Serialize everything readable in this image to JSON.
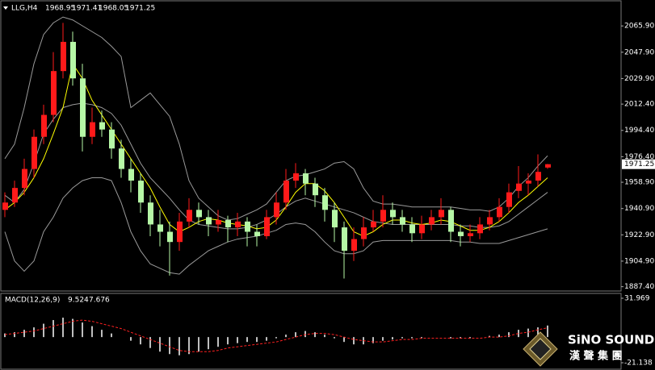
{
  "chart_data": [
    {
      "type": "candlestick",
      "title": "LLG,H4",
      "up_color": "#ff1a1a",
      "down_color": "#b6f7a6",
      "candles": [
        [
          1940,
          1952,
          1935,
          1945
        ],
        [
          1945,
          1960,
          1942,
          1955
        ],
        [
          1955,
          1975,
          1950,
          1968
        ],
        [
          1968,
          1995,
          1962,
          1990
        ],
        [
          1990,
          2012,
          1985,
          2005
        ],
        [
          2005,
          2048,
          2000,
          2035
        ],
        [
          2035,
          2068,
          2030,
          2055
        ],
        [
          2055,
          2062,
          2025,
          2030
        ],
        [
          2030,
          2040,
          1980,
          1990
        ],
        [
          1990,
          2010,
          1985,
          2000
        ],
        [
          2000,
          2008,
          1990,
          1995
        ],
        [
          1995,
          2000,
          1975,
          1982
        ],
        [
          1982,
          1988,
          1962,
          1968
        ],
        [
          1968,
          1975,
          1952,
          1960
        ],
        [
          1960,
          1965,
          1938,
          1945
        ],
        [
          1945,
          1950,
          1922,
          1930
        ],
        [
          1930,
          1940,
          1915,
          1925
        ],
        [
          1925,
          1932,
          1895,
          1918
        ],
        [
          1918,
          1938,
          1912,
          1932
        ],
        [
          1932,
          1948,
          1928,
          1940
        ],
        [
          1940,
          1945,
          1930,
          1935
        ],
        [
          1935,
          1940,
          1922,
          1930
        ],
        [
          1930,
          1940,
          1925,
          1933
        ],
        [
          1933,
          1936,
          1918,
          1928
        ],
        [
          1928,
          1938,
          1922,
          1932
        ],
        [
          1932,
          1935,
          1915,
          1925
        ],
        [
          1925,
          1930,
          1915,
          1922
        ],
        [
          1922,
          1940,
          1920,
          1935
        ],
        [
          1935,
          1952,
          1930,
          1945
        ],
        [
          1945,
          1968,
          1940,
          1960
        ],
        [
          1960,
          1972,
          1955,
          1965
        ],
        [
          1965,
          1968,
          1950,
          1958
        ],
        [
          1958,
          1962,
          1942,
          1950
        ],
        [
          1950,
          1955,
          1932,
          1940
        ],
        [
          1940,
          1945,
          1918,
          1928
        ],
        [
          1928,
          1932,
          1893,
          1912
        ],
        [
          1912,
          1928,
          1905,
          1920
        ],
        [
          1920,
          1935,
          1915,
          1928
        ],
        [
          1928,
          1940,
          1925,
          1932
        ],
        [
          1932,
          1950,
          1928,
          1940
        ],
        [
          1940,
          1945,
          1930,
          1935
        ],
        [
          1935,
          1940,
          1925,
          1930
        ],
        [
          1930,
          1935,
          1918,
          1924
        ],
        [
          1924,
          1936,
          1920,
          1930
        ],
        [
          1930,
          1940,
          1926,
          1935
        ],
        [
          1935,
          1948,
          1930,
          1940
        ],
        [
          1940,
          1942,
          1918,
          1925
        ],
        [
          1925,
          1930,
          1915,
          1922
        ],
        [
          1922,
          1930,
          1918,
          1924
        ],
        [
          1924,
          1935,
          1920,
          1930
        ],
        [
          1930,
          1940,
          1926,
          1935
        ],
        [
          1935,
          1948,
          1932,
          1942
        ],
        [
          1942,
          1958,
          1938,
          1952
        ],
        [
          1953,
          1970,
          1948,
          1958
        ],
        [
          1958,
          1965,
          1950,
          1960
        ],
        [
          1960,
          1978,
          1956,
          1966
        ],
        [
          1968.95,
          1971.41,
          1968.05,
          1971.25
        ]
      ],
      "series": [
        {
          "color": "#9a9a9a",
          "values": [
            1975,
            1985,
            2010,
            2040,
            2060,
            2068,
            2072,
            2070,
            2066,
            2062,
            2058,
            2052,
            2045,
            2010,
            2015,
            2020,
            2012,
            2004,
            1985,
            1960,
            1948,
            1942,
            1936,
            1933,
            1934,
            1937,
            1940,
            1944,
            1952,
            1960,
            1963,
            1964,
            1966,
            1968,
            1972,
            1973,
            1968,
            1955,
            1946,
            1944,
            1944,
            1943,
            1942,
            1942,
            1942,
            1942,
            1942,
            1941,
            1940,
            1940,
            1939,
            1942,
            1948,
            1956,
            1962,
            1970,
            1977
          ]
        },
        {
          "color": "#9a9a9a",
          "values": [
            1950,
            1945,
            1954,
            1972,
            1992,
            2002,
            2010,
            2012,
            2013,
            2012,
            2010,
            2006,
            1998,
            1985,
            1972,
            1962,
            1955,
            1948,
            1940,
            1933,
            1930,
            1929,
            1928,
            1927,
            1927,
            1928,
            1930,
            1933,
            1937,
            1942,
            1946,
            1948,
            1946,
            1944,
            1942,
            1940,
            1938,
            1935,
            1932,
            1931,
            1930,
            1930,
            1930,
            1930,
            1930,
            1930,
            1930,
            1929,
            1929,
            1928,
            1928,
            1929,
            1932,
            1937,
            1942,
            1947,
            1952
          ]
        },
        {
          "color": "#9a9a9a",
          "values": [
            1925,
            1905,
            1898,
            1905,
            1925,
            1935,
            1948,
            1955,
            1960,
            1962,
            1962,
            1960,
            1945,
            1925,
            1912,
            1903,
            1900,
            1897,
            1896,
            1902,
            1907,
            1912,
            1915,
            1918,
            1920,
            1921,
            1922,
            1924,
            1926,
            1930,
            1931,
            1930,
            1925,
            1918,
            1912,
            1910,
            1910,
            1912,
            1918,
            1919,
            1919,
            1919,
            1919,
            1919,
            1919,
            1919,
            1919,
            1918,
            1918,
            1917,
            1917,
            1917,
            1919,
            1921,
            1923,
            1925,
            1927
          ]
        },
        {
          "color": "#ffff00",
          "values": [
            1940,
            1945,
            1952,
            1962,
            1975,
            1992,
            2010,
            2040,
            2030,
            2015,
            2005,
            1995,
            1985,
            1975,
            1965,
            1955,
            1942,
            1930,
            1925,
            1928,
            1932,
            1934,
            1933,
            1931,
            1930,
            1929,
            1927,
            1928,
            1933,
            1942,
            1952,
            1958,
            1958,
            1953,
            1945,
            1935,
            1925,
            1922,
            1925,
            1930,
            1933,
            1933,
            1931,
            1930,
            1931,
            1933,
            1932,
            1929,
            1926,
            1926,
            1928,
            1932,
            1938,
            1945,
            1950,
            1956,
            1962
          ]
        }
      ],
      "ylim": [
        1885,
        2082
      ],
      "yticks": [
        {
          "value": 2065.9,
          "label": "2065.90"
        },
        {
          "value": 2047.9,
          "label": "2047.90"
        },
        {
          "value": 2029.9,
          "label": "2029.90"
        },
        {
          "value": 2012.4,
          "label": "2012.40"
        },
        {
          "value": 1994.4,
          "label": "1994.40"
        },
        {
          "value": 1976.4,
          "label": "1976.40"
        },
        {
          "value": 1958.9,
          "label": "1958.90"
        },
        {
          "value": 1940.9,
          "label": "1940.90"
        },
        {
          "value": 1922.9,
          "label": "1922.90"
        },
        {
          "value": 1904.9,
          "label": "1904.90"
        },
        {
          "value": 1887.4,
          "label": "1887.40"
        }
      ]
    },
    {
      "type": "macd",
      "title": "MACD(12,26,9)",
      "series": [
        {
          "style": "bar",
          "color": "#ffffff",
          "values": [
            3,
            4,
            6,
            8,
            11,
            14,
            16,
            15,
            12,
            9,
            6,
            3,
            0,
            -3,
            -6,
            -9,
            -12,
            -14,
            -15,
            -14,
            -12,
            -10,
            -8,
            -6,
            -5,
            -4,
            -4,
            -3,
            -1,
            2,
            4,
            5,
            4,
            2,
            -1,
            -4,
            -6,
            -6,
            -5,
            -3,
            -2,
            -1,
            -1,
            -1,
            0,
            0,
            -1,
            -1,
            -1,
            0,
            1,
            2,
            4,
            6,
            7,
            8,
            9.524
          ]
        },
        {
          "style": "dotted",
          "color": "#ff2020",
          "values": [
            2,
            3,
            4,
            5,
            7,
            9,
            11,
            13,
            14,
            13,
            11,
            9,
            7,
            4,
            1,
            -2,
            -5,
            -8,
            -11,
            -12,
            -12,
            -12,
            -11,
            -9,
            -8,
            -7,
            -6,
            -5,
            -4,
            -2,
            0,
            2,
            3,
            3,
            2,
            0,
            -2,
            -3,
            -4,
            -4,
            -3,
            -2,
            -2,
            -1,
            -1,
            -1,
            -1,
            -1,
            -1,
            -1,
            0,
            0,
            1,
            3,
            4,
            6,
            7.676
          ]
        }
      ],
      "ylim": [
        -21.138,
        31.969
      ],
      "yticks": [
        31.969,
        -21.138
      ]
    }
  ],
  "logo": {
    "text": "SiNO SOUND",
    "subtitle": "漢 聲 集 團"
  }
}
